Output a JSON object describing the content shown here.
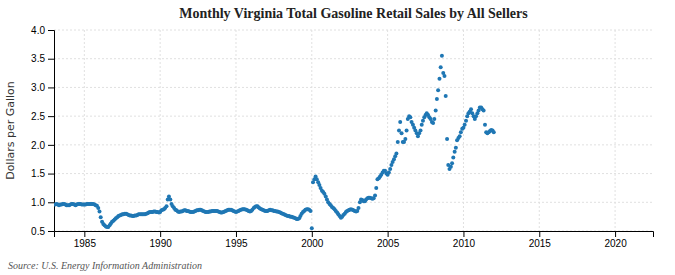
{
  "chart_data": {
    "type": "scatter",
    "title": "Monthly Virginia Total Gasoline Retail Sales by All Sellers",
    "ylabel": "Dollars per Gallon",
    "annotations": [
      "Source: U.S. Energy Information Administration"
    ],
    "grid": true,
    "xlim": [
      1983.0,
      2022.5
    ],
    "xticks": [
      1985,
      1990,
      1995,
      2000,
      2005,
      2010,
      2015,
      2020
    ],
    "ylim": [
      0.5,
      4.0
    ],
    "yticks": [
      0.5,
      {
        "value": 1.0,
        "label": "1.0"
      },
      1.5,
      {
        "value": 2.0,
        "label": "2.0"
      },
      2.5,
      {
        "value": 3.0,
        "label": "3.0"
      },
      3.5,
      {
        "value": 4.0,
        "label": "4.0"
      }
    ],
    "x": [
      1983.08,
      1983.17,
      1983.25,
      1983.33,
      1983.42,
      1983.5,
      1983.58,
      1983.67,
      1983.75,
      1983.83,
      1983.92,
      1984.0,
      1984.08,
      1984.17,
      1984.25,
      1984.33,
      1984.42,
      1984.5,
      1984.58,
      1984.67,
      1984.75,
      1984.83,
      1984.92,
      1985.0,
      1985.08,
      1985.17,
      1985.25,
      1985.33,
      1985.42,
      1985.5,
      1985.58,
      1985.67,
      1985.75,
      1985.83,
      1985.92,
      1986.0,
      1986.08,
      1986.17,
      1986.25,
      1986.33,
      1986.42,
      1986.5,
      1986.58,
      1986.67,
      1986.75,
      1986.83,
      1986.92,
      1987.0,
      1987.08,
      1987.17,
      1987.25,
      1987.33,
      1987.42,
      1987.5,
      1987.58,
      1987.67,
      1987.75,
      1987.83,
      1987.92,
      1988.0,
      1988.08,
      1988.17,
      1988.25,
      1988.33,
      1988.42,
      1988.5,
      1988.58,
      1988.67,
      1988.75,
      1988.83,
      1988.92,
      1989.0,
      1989.08,
      1989.17,
      1989.25,
      1989.33,
      1989.42,
      1989.5,
      1989.58,
      1989.67,
      1989.75,
      1989.83,
      1989.92,
      1990.0,
      1990.08,
      1990.17,
      1990.25,
      1990.33,
      1990.42,
      1990.5,
      1990.58,
      1990.67,
      1990.75,
      1990.83,
      1990.92,
      1991.0,
      1991.08,
      1991.17,
      1991.25,
      1991.33,
      1991.42,
      1991.5,
      1991.58,
      1991.67,
      1991.75,
      1991.83,
      1991.92,
      1992.0,
      1992.08,
      1992.17,
      1992.25,
      1992.33,
      1992.42,
      1992.5,
      1992.58,
      1992.67,
      1992.75,
      1992.83,
      1992.92,
      1993.0,
      1993.08,
      1993.17,
      1993.25,
      1993.33,
      1993.42,
      1993.5,
      1993.58,
      1993.67,
      1993.75,
      1993.83,
      1993.92,
      1994.0,
      1994.08,
      1994.17,
      1994.25,
      1994.33,
      1994.42,
      1994.5,
      1994.58,
      1994.67,
      1994.75,
      1994.83,
      1994.92,
      1995.0,
      1995.08,
      1995.17,
      1995.25,
      1995.33,
      1995.42,
      1995.5,
      1995.58,
      1995.67,
      1995.75,
      1995.83,
      1995.92,
      1996.0,
      1996.08,
      1996.17,
      1996.25,
      1996.33,
      1996.42,
      1996.5,
      1996.58,
      1996.67,
      1996.75,
      1996.83,
      1996.92,
      1997.0,
      1997.08,
      1997.17,
      1997.25,
      1997.33,
      1997.42,
      1997.5,
      1997.58,
      1997.67,
      1997.75,
      1997.83,
      1997.92,
      1998.0,
      1998.08,
      1998.17,
      1998.25,
      1998.33,
      1998.42,
      1998.5,
      1998.58,
      1998.67,
      1998.75,
      1998.83,
      1998.92,
      1999.0,
      1999.08,
      1999.17,
      1999.25,
      1999.33,
      1999.42,
      1999.5,
      1999.58,
      1999.67,
      1999.75,
      1999.83,
      1999.92,
      2000.0,
      2000.08,
      2000.17,
      2000.25,
      2000.33,
      2000.42,
      2000.5,
      2000.58,
      2000.67,
      2000.75,
      2000.83,
      2000.92,
      2001.0,
      2001.08,
      2001.17,
      2001.25,
      2001.33,
      2001.42,
      2001.5,
      2001.58,
      2001.67,
      2001.75,
      2001.83,
      2001.92,
      2002.0,
      2002.08,
      2002.17,
      2002.25,
      2002.33,
      2002.42,
      2002.5,
      2002.58,
      2002.67,
      2002.75,
      2002.83,
      2002.92,
      2003.0,
      2003.08,
      2003.17,
      2003.25,
      2003.33,
      2003.42,
      2003.5,
      2003.58,
      2003.67,
      2003.75,
      2003.83,
      2003.92,
      2004.0,
      2004.08,
      2004.17,
      2004.25,
      2004.33,
      2004.42,
      2004.5,
      2004.58,
      2004.67,
      2004.75,
      2004.83,
      2004.92,
      2005.0,
      2005.08,
      2005.17,
      2005.25,
      2005.33,
      2005.42,
      2005.5,
      2005.58,
      2005.67,
      2005.75,
      2005.83,
      2005.92,
      2006.0,
      2006.08,
      2006.17,
      2006.25,
      2006.33,
      2006.42,
      2006.5,
      2006.58,
      2006.67,
      2006.75,
      2006.83,
      2006.92,
      2007.0,
      2007.08,
      2007.17,
      2007.25,
      2007.33,
      2007.42,
      2007.5,
      2007.58,
      2007.67,
      2007.75,
      2007.83,
      2007.92,
      2008.0,
      2008.08,
      2008.17,
      2008.25,
      2008.33,
      2008.42,
      2008.5,
      2008.58,
      2008.67,
      2008.75,
      2008.83,
      2008.92,
      2009.0,
      2009.08,
      2009.17,
      2009.25,
      2009.33,
      2009.42,
      2009.5,
      2009.58,
      2009.67,
      2009.75,
      2009.83,
      2009.92,
      2010.0,
      2010.08,
      2010.17,
      2010.25,
      2010.33,
      2010.42,
      2010.5,
      2010.58,
      2010.67,
      2010.75,
      2010.83,
      2010.92,
      2011.0,
      2011.08,
      2011.17,
      2011.25,
      2011.33,
      2011.42,
      2011.5,
      2011.58,
      2011.67,
      2011.75,
      2011.83,
      2011.92,
      2012.0
    ],
    "values": [
      0.96,
      0.97,
      0.96,
      0.95,
      0.96,
      0.96,
      0.97,
      0.97,
      0.96,
      0.95,
      0.95,
      0.95,
      0.96,
      0.97,
      0.97,
      0.96,
      0.95,
      0.96,
      0.97,
      0.97,
      0.97,
      0.96,
      0.96,
      0.96,
      0.96,
      0.97,
      0.97,
      0.97,
      0.97,
      0.97,
      0.97,
      0.96,
      0.95,
      0.94,
      0.9,
      0.84,
      0.74,
      0.66,
      0.62,
      0.6,
      0.58,
      0.57,
      0.57,
      0.6,
      0.63,
      0.66,
      0.68,
      0.7,
      0.72,
      0.74,
      0.76,
      0.77,
      0.78,
      0.79,
      0.79,
      0.8,
      0.8,
      0.79,
      0.78,
      0.77,
      0.77,
      0.76,
      0.76,
      0.77,
      0.77,
      0.78,
      0.79,
      0.79,
      0.79,
      0.79,
      0.79,
      0.79,
      0.8,
      0.81,
      0.82,
      0.83,
      0.83,
      0.83,
      0.84,
      0.84,
      0.83,
      0.83,
      0.82,
      0.83,
      0.86,
      0.87,
      0.88,
      0.9,
      0.93,
      1.05,
      1.1,
      1.05,
      0.97,
      0.93,
      0.9,
      0.87,
      0.86,
      0.84,
      0.83,
      0.84,
      0.84,
      0.85,
      0.86,
      0.86,
      0.85,
      0.85,
      0.84,
      0.83,
      0.83,
      0.83,
      0.84,
      0.85,
      0.86,
      0.86,
      0.87,
      0.87,
      0.86,
      0.85,
      0.84,
      0.83,
      0.83,
      0.83,
      0.84,
      0.84,
      0.85,
      0.85,
      0.85,
      0.85,
      0.85,
      0.84,
      0.83,
      0.82,
      0.82,
      0.83,
      0.84,
      0.85,
      0.86,
      0.87,
      0.87,
      0.87,
      0.86,
      0.85,
      0.84,
      0.83,
      0.84,
      0.85,
      0.86,
      0.87,
      0.88,
      0.88,
      0.88,
      0.87,
      0.86,
      0.85,
      0.84,
      0.85,
      0.87,
      0.9,
      0.92,
      0.93,
      0.93,
      0.91,
      0.89,
      0.88,
      0.87,
      0.86,
      0.85,
      0.85,
      0.85,
      0.86,
      0.87,
      0.86,
      0.86,
      0.85,
      0.85,
      0.84,
      0.84,
      0.83,
      0.82,
      0.81,
      0.8,
      0.79,
      0.78,
      0.77,
      0.76,
      0.76,
      0.75,
      0.75,
      0.74,
      0.73,
      0.72,
      0.71,
      0.71,
      0.72,
      0.76,
      0.8,
      0.83,
      0.85,
      0.87,
      0.88,
      0.88,
      0.87,
      0.85,
      0.55,
      1.35,
      1.4,
      1.45,
      1.4,
      1.35,
      1.3,
      1.25,
      1.2,
      1.18,
      1.15,
      1.1,
      1.05,
      1.0,
      0.97,
      0.95,
      0.92,
      0.9,
      0.88,
      0.85,
      0.82,
      0.79,
      0.76,
      0.73,
      0.75,
      0.78,
      0.8,
      0.83,
      0.85,
      0.86,
      0.87,
      0.88,
      0.87,
      0.86,
      0.85,
      0.84,
      0.85,
      0.9,
      1.0,
      1.05,
      1.04,
      1.02,
      1.02,
      1.05,
      1.07,
      1.08,
      1.08,
      1.07,
      1.06,
      1.07,
      1.12,
      1.25,
      1.4,
      1.42,
      1.45,
      1.48,
      1.52,
      1.55,
      1.55,
      1.5,
      1.48,
      1.52,
      1.58,
      1.65,
      1.7,
      1.75,
      1.8,
      1.85,
      2.05,
      2.25,
      2.4,
      2.2,
      2.05,
      2.05,
      2.1,
      2.25,
      2.45,
      2.5,
      2.48,
      2.4,
      2.35,
      2.3,
      2.25,
      2.2,
      2.15,
      2.2,
      2.25,
      2.35,
      2.42,
      2.48,
      2.52,
      2.55,
      2.52,
      2.48,
      2.45,
      2.4,
      2.38,
      2.45,
      2.6,
      2.8,
      2.95,
      3.15,
      3.35,
      3.55,
      3.25,
      3.2,
      2.85,
      2.1,
      1.65,
      1.58,
      1.62,
      1.68,
      1.78,
      1.88,
      1.95,
      2.08,
      2.12,
      2.15,
      2.22,
      2.28,
      2.3,
      2.35,
      2.42,
      2.5,
      2.55,
      2.58,
      2.62,
      2.55,
      2.5,
      2.45,
      2.5,
      2.55,
      2.6,
      2.65,
      2.65,
      2.62,
      2.6,
      2.35,
      2.22,
      2.2,
      2.22,
      2.24,
      2.26,
      2.25,
      2.22
    ]
  }
}
